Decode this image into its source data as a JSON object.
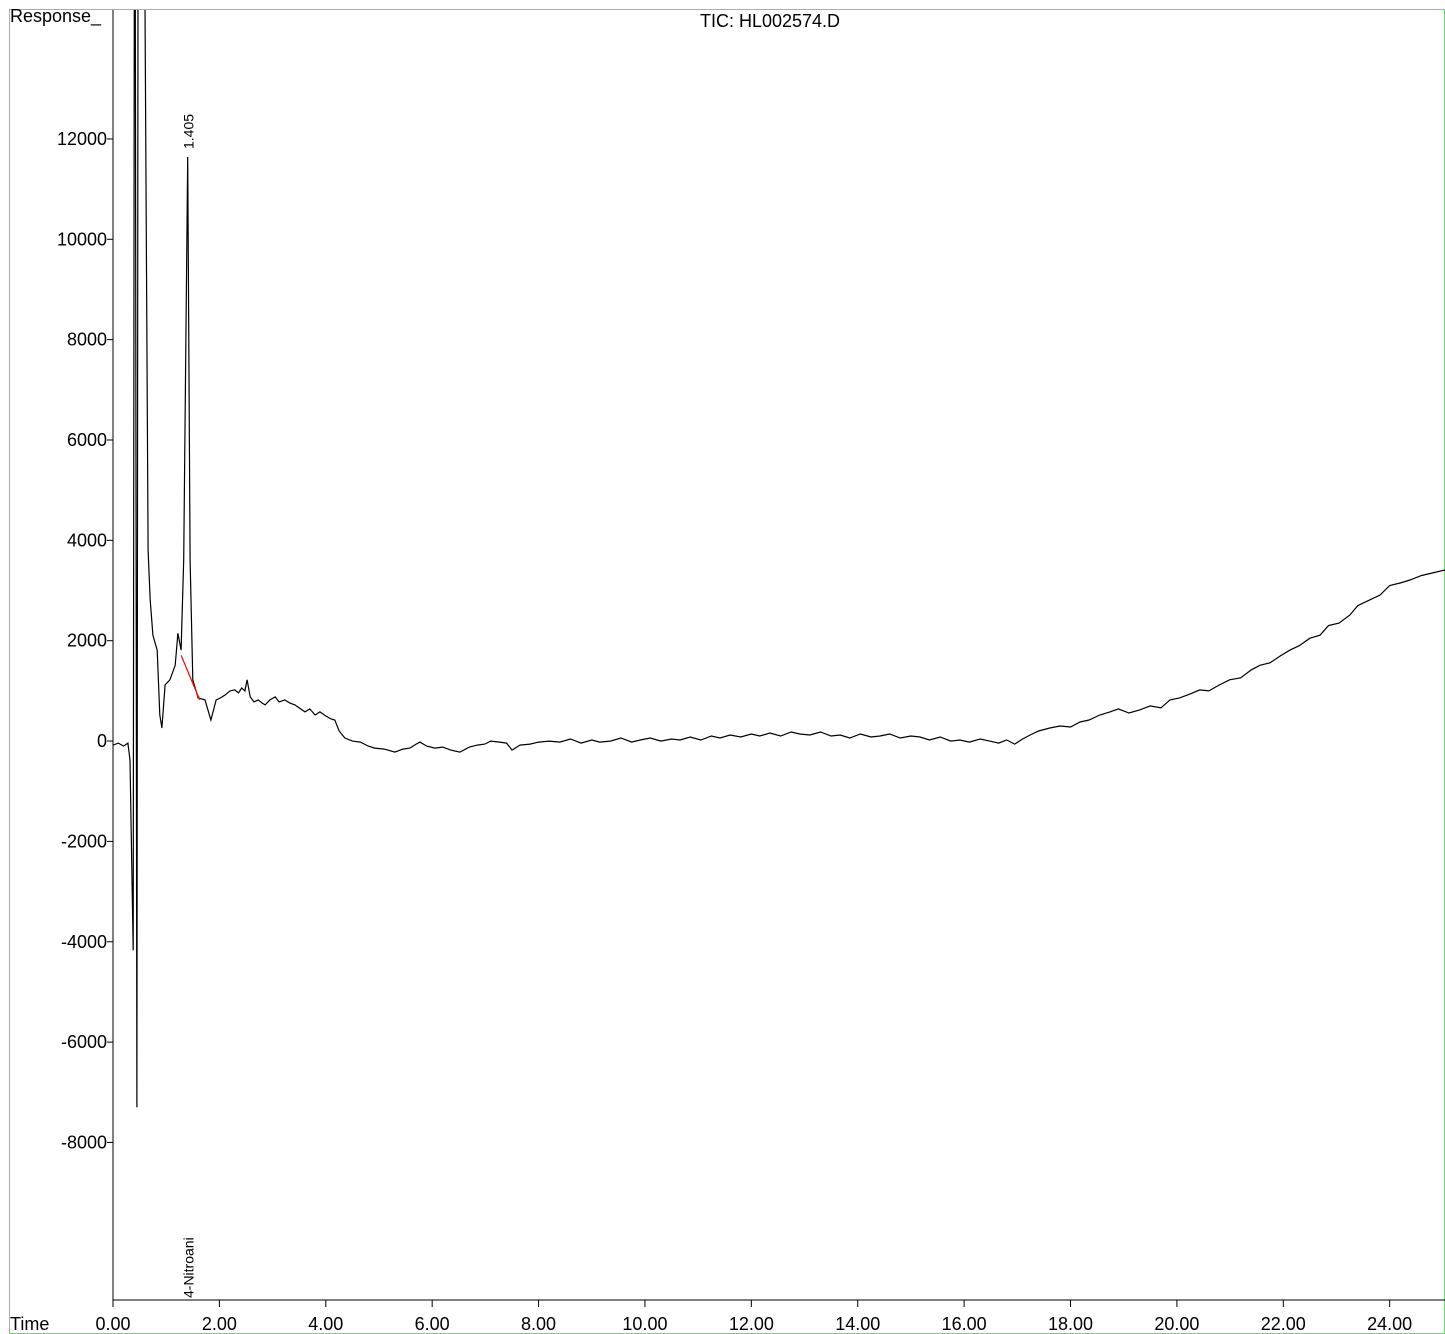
{
  "chart_data": {
    "type": "line",
    "title": "TIC: HL002574.D",
    "y_label": "Response_",
    "x_label": "Time",
    "xlim": [
      0,
      25.04
    ],
    "ylim": [
      -11140,
      14570
    ],
    "xticks": [
      {
        "value": 0,
        "label": "0.00"
      },
      {
        "value": 2,
        "label": "2.00"
      },
      {
        "value": 4,
        "label": "4.00"
      },
      {
        "value": 6,
        "label": "6.00"
      },
      {
        "value": 8,
        "label": "8.00"
      },
      {
        "value": 10,
        "label": "10.00"
      },
      {
        "value": 12,
        "label": "12.00"
      },
      {
        "value": 14,
        "label": "14.00"
      },
      {
        "value": 16,
        "label": "16.00"
      },
      {
        "value": 18,
        "label": "18.00"
      },
      {
        "value": 20,
        "label": "20.00"
      },
      {
        "value": 22,
        "label": "22.00"
      },
      {
        "value": 24,
        "label": "24.00"
      }
    ],
    "yticks": [
      12000,
      10000,
      8000,
      6000,
      4000,
      2000,
      0,
      -2000,
      -4000,
      -6000,
      -8000
    ],
    "series": [
      {
        "color": "#000000",
        "x": [
          0,
          0.1,
          0.2,
          0.28,
          0.32,
          0.38,
          0.4,
          0.42,
          0.45,
          0.47,
          0.6,
          0.66,
          0.7,
          0.75,
          0.83,
          0.88,
          0.92,
          0.98,
          1.07,
          1.17,
          1.22,
          1.28,
          1.33,
          1.405,
          1.45,
          1.5,
          1.6,
          1.73,
          1.84,
          1.94,
          2.02,
          2.11,
          2.2,
          2.29,
          2.36,
          2.42,
          2.48,
          2.52,
          2.58,
          2.65,
          2.73,
          2.8,
          2.86,
          2.95,
          3.05,
          3.12,
          3.23,
          3.32,
          3.42,
          3.5,
          3.61,
          3.7,
          3.8,
          3.89,
          4.0,
          4.1,
          4.17,
          4.25,
          4.36,
          4.5,
          4.65,
          4.8,
          4.92,
          5.1,
          5.3,
          5.45,
          5.58,
          5.7,
          5.77,
          5.9,
          6.05,
          6.2,
          6.35,
          6.52,
          6.7,
          6.85,
          6.99,
          7.1,
          7.27,
          7.4,
          7.5,
          7.65,
          7.84,
          8.0,
          8.2,
          8.4,
          8.6,
          8.8,
          9.0,
          9.15,
          9.35,
          9.55,
          9.75,
          9.91,
          10.1,
          10.3,
          10.5,
          10.66,
          10.85,
          11.05,
          11.25,
          11.41,
          11.6,
          11.8,
          12.0,
          12.16,
          12.35,
          12.55,
          12.75,
          12.91,
          13.1,
          13.3,
          13.5,
          13.67,
          13.85,
          14.05,
          14.25,
          14.42,
          14.6,
          14.8,
          15.0,
          15.17,
          15.35,
          15.55,
          15.75,
          15.92,
          16.1,
          16.3,
          16.48,
          16.65,
          16.8,
          16.95,
          17.1,
          17.24,
          17.4,
          17.61,
          17.8,
          18.0,
          18.18,
          18.35,
          18.55,
          18.74,
          18.9,
          19.1,
          19.3,
          19.5,
          19.7,
          19.87,
          20.05,
          20.25,
          20.43,
          20.6,
          20.8,
          20.99,
          21.2,
          21.4,
          21.56,
          21.75,
          21.95,
          22.12,
          22.3,
          22.5,
          22.69,
          22.85,
          23.05,
          23.25,
          23.4,
          23.6,
          23.82,
          24.0,
          24.2,
          24.38,
          24.6,
          24.8,
          25.04
        ],
        "values": [
          -80,
          -40,
          -100,
          -40,
          -380,
          -4170,
          15000,
          15000,
          -7300,
          15000,
          15000,
          3800,
          2810,
          2110,
          1810,
          520,
          260,
          1120,
          1220,
          1510,
          2150,
          1810,
          3610,
          11640,
          3610,
          1220,
          860,
          820,
          420,
          820,
          860,
          920,
          1000,
          1020,
          960,
          1060,
          1000,
          1220,
          880,
          780,
          820,
          760,
          720,
          820,
          880,
          780,
          820,
          760,
          720,
          660,
          580,
          640,
          520,
          580,
          500,
          440,
          420,
          200,
          60,
          0,
          -20,
          -100,
          -140,
          -160,
          -220,
          -160,
          -140,
          -60,
          -20,
          -100,
          -140,
          -120,
          -180,
          -220,
          -120,
          -80,
          -60,
          0,
          -20,
          -40,
          -180,
          -80,
          -60,
          -20,
          0,
          -20,
          40,
          -40,
          20,
          -20,
          0,
          60,
          -20,
          20,
          60,
          0,
          40,
          20,
          80,
          20,
          100,
          60,
          120,
          80,
          140,
          100,
          160,
          100,
          180,
          140,
          120,
          180,
          100,
          120,
          60,
          140,
          80,
          100,
          140,
          60,
          100,
          80,
          20,
          80,
          0,
          20,
          -20,
          40,
          0,
          -40,
          20,
          -60,
          40,
          120,
          200,
          260,
          300,
          280,
          380,
          420,
          520,
          580,
          640,
          560,
          620,
          700,
          660,
          820,
          860,
          940,
          1020,
          1000,
          1120,
          1220,
          1260,
          1420,
          1510,
          1560,
          1700,
          1810,
          1900,
          2050,
          2110,
          2300,
          2350,
          2510,
          2700,
          2800,
          2910,
          3100,
          3150,
          3210,
          3300,
          3350,
          3410
        ]
      },
      {
        "color": "#ff0000",
        "x": [
          1.28,
          1.63
        ],
        "values": [
          1710,
          820
        ]
      }
    ],
    "annotations": [
      {
        "text": "1.405",
        "x": 1.405,
        "y": 11640
      },
      {
        "text": "4-Nitroani",
        "x": 1.405
      }
    ],
    "frame_color": "#66dd66"
  }
}
